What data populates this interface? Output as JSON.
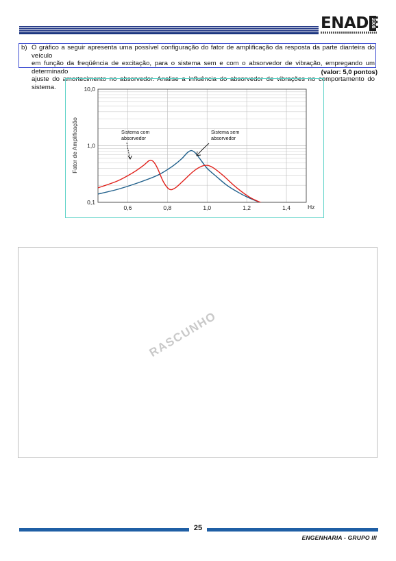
{
  "header": {
    "logo_text": "ENADE",
    "logo_year": "2008"
  },
  "question": {
    "label": "b)",
    "lines": [
      "O gráfico a seguir apresenta uma possível configuração do fator de amplificação da resposta da parte dianteira do veículo",
      "em função da freqüência de excitação, para o sistema sem e com o absorvedor de vibração, empregando um determinado",
      "ajuste do amortecimento no absorvedor. Analise a influência do absorvedor de vibrações no comportamento do sistema."
    ],
    "valor": "(valor: 5,0 pontos)"
  },
  "chart_data": {
    "type": "line",
    "title": "",
    "xlabel": "Hz",
    "ylabel": "Fator de Amplificação",
    "yscale": "log",
    "xlim": [
      0.45,
      1.5
    ],
    "ylim": [
      0.1,
      10.0
    ],
    "x_ticks": [
      "0,6",
      "0,8",
      "1,0",
      "1,2",
      "1,4"
    ],
    "y_ticks": [
      "10,0",
      "1,0",
      "0,1"
    ],
    "grid": true,
    "series": [
      {
        "name": "Sistema sem absorvedor",
        "color": "#1f5f8b",
        "x": [
          0.45,
          0.55,
          0.65,
          0.75,
          0.82,
          0.87,
          0.9,
          0.92,
          0.94,
          0.97,
          1.0,
          1.05,
          1.1,
          1.15,
          1.2,
          1.25,
          1.3
        ],
        "y": [
          0.14,
          0.17,
          0.22,
          0.3,
          0.42,
          0.58,
          0.75,
          0.82,
          0.75,
          0.55,
          0.4,
          0.28,
          0.2,
          0.155,
          0.125,
          0.105,
          0.09
        ]
      },
      {
        "name": "Sistema com absorvedor",
        "color": "#e0201a",
        "x": [
          0.45,
          0.55,
          0.63,
          0.68,
          0.71,
          0.73,
          0.75,
          0.78,
          0.81,
          0.84,
          0.88,
          0.93,
          0.97,
          1.0,
          1.03,
          1.08,
          1.15,
          1.22,
          1.3
        ],
        "y": [
          0.18,
          0.24,
          0.34,
          0.45,
          0.55,
          0.52,
          0.4,
          0.23,
          0.17,
          0.18,
          0.24,
          0.35,
          0.43,
          0.45,
          0.41,
          0.3,
          0.18,
          0.12,
          0.09
        ]
      }
    ],
    "annotations": [
      {
        "text_lines": [
          "Sistema com",
          "absorvedor"
        ],
        "target_series": "Sistema com absorvedor"
      },
      {
        "text_lines": [
          "Sistema sem",
          "absorvedor"
        ],
        "target_series": "Sistema sem absorvedor"
      }
    ]
  },
  "draft": {
    "watermark": "RASCUNHO"
  },
  "footer": {
    "page_number": "25",
    "course": "ENGENHARIA - GRUPO III"
  }
}
